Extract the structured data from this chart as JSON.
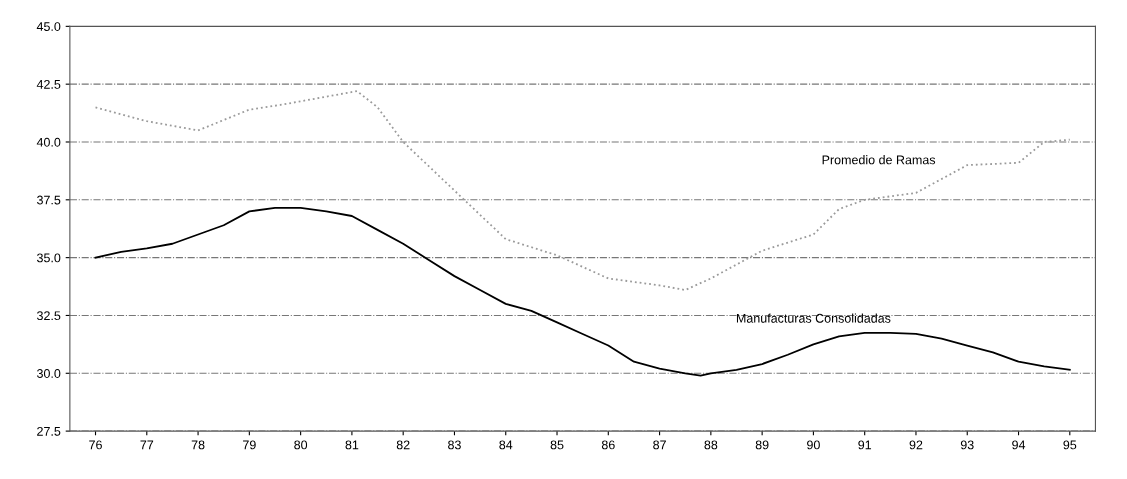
{
  "chart_data": {
    "type": "line",
    "xlim": [
      75.5,
      95.5
    ],
    "xticks": [
      76,
      77,
      78,
      79,
      80,
      81,
      82,
      83,
      84,
      85,
      86,
      87,
      88,
      89,
      90,
      91,
      92,
      93,
      94,
      95
    ],
    "ylim": [
      27.5,
      45.0
    ],
    "yticks": [
      {
        "value": 27.5,
        "label": "27.5"
      },
      {
        "value": 30,
        "label": "30.0"
      },
      {
        "value": 32.5,
        "label": "32.5"
      },
      {
        "value": 35,
        "label": "35.0"
      },
      {
        "value": 37.5,
        "label": "37.5"
      },
      {
        "value": 40,
        "label": "40.0"
      },
      {
        "value": 42.5,
        "label": "42.5"
      },
      {
        "value": 45,
        "label": "45.0"
      }
    ],
    "grid": "y",
    "marker": "none",
    "series": [
      {
        "name": "Manufacturas Consolidadas",
        "color": "#000000",
        "line_style": "solid",
        "x": [
          76,
          76.5,
          77,
          77.5,
          78,
          78.5,
          79,
          79.5,
          80,
          80.5,
          81,
          81.5,
          82,
          82.5,
          83,
          83.5,
          84,
          84.5,
          85,
          85.5,
          86,
          86.5,
          87,
          87.5,
          87.8,
          88,
          88.5,
          89,
          89.5,
          90,
          90.5,
          91,
          91.5,
          92,
          92.5,
          93,
          93.5,
          94,
          94.5,
          95
        ],
        "values": [
          35.0,
          35.25,
          35.4,
          35.6,
          36.0,
          36.4,
          37.0,
          37.15,
          37.15,
          37.0,
          36.8,
          36.2,
          35.6,
          34.9,
          34.2,
          33.6,
          33.0,
          32.7,
          32.2,
          31.7,
          31.2,
          30.5,
          30.2,
          30.0,
          29.9,
          30.0,
          30.15,
          30.4,
          30.8,
          31.25,
          31.6,
          31.75,
          31.75,
          31.7,
          31.5,
          31.2,
          30.9,
          30.5,
          30.3,
          30.15
        ]
      },
      {
        "name": "Promedio de Ramas",
        "color": "#9a9a9a",
        "line_style": "dotted",
        "x": [
          76,
          77,
          78,
          79,
          79.6,
          81.1,
          81.5,
          82,
          83,
          84,
          85,
          86,
          87,
          87.5,
          88,
          89,
          90,
          90.5,
          91,
          92,
          93,
          94,
          94.5,
          95
        ],
        "values": [
          41.5,
          40.9,
          40.5,
          41.4,
          41.6,
          42.2,
          41.5,
          40.0,
          37.9,
          35.8,
          35.1,
          34.1,
          33.8,
          33.6,
          34.1,
          35.3,
          36.0,
          37.1,
          37.5,
          37.8,
          39.0,
          39.1,
          40.0,
          40.1
        ]
      }
    ]
  }
}
